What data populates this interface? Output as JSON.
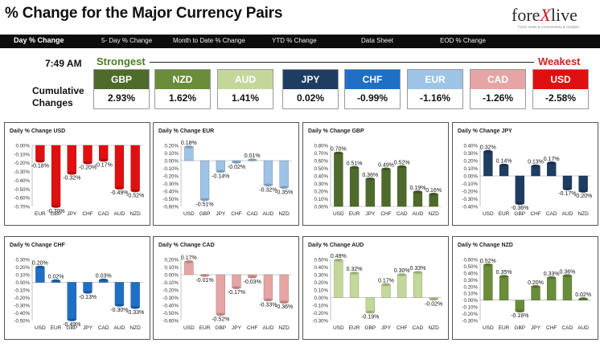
{
  "header": {
    "title": "% Change for the Major Currency Pairs",
    "logo_text_1": "fore",
    "logo_text_2": "X",
    "logo_text_3": "live",
    "logo_tagline": "Forex news & Commentary & Analysis"
  },
  "nav": [
    {
      "label": "Day % Change",
      "active": true
    },
    {
      "label": "5- Day % Change",
      "active": false
    },
    {
      "label": "Month to Date % Change",
      "active": false
    },
    {
      "label": "YTD % Change",
      "active": false
    },
    {
      "label": "Data Sheet",
      "active": false
    },
    {
      "label": "EOD % Change",
      "active": false
    }
  ],
  "time": "7:49 AM",
  "strongest_label": "Strongest",
  "weakest_label": "Weakest",
  "cumulative_label_1": "Cumulative",
  "cumulative_label_2": "Changes",
  "rank_cards": [
    {
      "currency": "GBP",
      "value": "2.93%",
      "color": "#4f6b2c"
    },
    {
      "currency": "NZD",
      "value": "1.62%",
      "color": "#6b8d3a"
    },
    {
      "currency": "AUD",
      "value": "1.41%",
      "color": "#c4d79b"
    },
    {
      "currency": "JPY",
      "value": "0.02%",
      "color": "#1f3d63"
    },
    {
      "currency": "CHF",
      "value": "-0.99%",
      "color": "#1f6fc5"
    },
    {
      "currency": "EUR",
      "value": "-1.16%",
      "color": "#9dc3e6"
    },
    {
      "currency": "CAD",
      "value": "-1.26%",
      "color": "#e6a5a5"
    },
    {
      "currency": "USD",
      "value": "-2.58%",
      "color": "#e01010"
    }
  ],
  "chart_data": [
    {
      "type": "bar",
      "title": "Daily % Change USD",
      "color": "#e01010",
      "categories": [
        "EUR",
        "GBP",
        "JPY",
        "CHF",
        "CAD",
        "AUD",
        "NZD"
      ],
      "values": [
        -0.18,
        -0.7,
        -0.32,
        -0.2,
        -0.17,
        -0.49,
        -0.52
      ],
      "data_labels": [
        "-0.18%",
        "-0.70%",
        "-0.32%",
        "-0.20%",
        "-0.17%",
        "-0.49%",
        "-0.52%"
      ],
      "ylim": [
        -0.7,
        0.0
      ],
      "yticks": [
        "0.00%",
        "-0.10%",
        "-0.20%",
        "-0.30%",
        "-0.40%",
        "-0.50%",
        "-0.60%",
        "-0.70%"
      ]
    },
    {
      "type": "bar",
      "title": "Daily % Change EUR",
      "color": "#9dc3e6",
      "categories": [
        "USD",
        "GBP",
        "JPY",
        "CHF",
        "CAD",
        "AUD",
        "NZD"
      ],
      "values": [
        0.18,
        -0.51,
        -0.14,
        -0.02,
        0.01,
        -0.32,
        -0.35
      ],
      "data_labels": [
        "0.18%",
        "-0.51%",
        "-0.14%",
        "-0.02%",
        "0.01%",
        "-0.32%",
        "-0.35%"
      ],
      "ylim": [
        -0.6,
        0.2
      ],
      "yticks": [
        "0.20%",
        "0.10%",
        "0.00%",
        "-0.10%",
        "-0.20%",
        "-0.30%",
        "-0.40%",
        "-0.50%",
        "-0.60%"
      ]
    },
    {
      "type": "bar",
      "title": "Daily % Change GBP",
      "color": "#4f6b2c",
      "categories": [
        "USD",
        "EUR",
        "JPY",
        "CHF",
        "CAD",
        "AUD",
        "NZD"
      ],
      "values": [
        0.7,
        0.51,
        0.36,
        0.49,
        0.52,
        0.19,
        0.16
      ],
      "data_labels": [
        "0.70%",
        "0.51%",
        "0.36%",
        "0.49%",
        "0.52%",
        "0.19%",
        "0.16%"
      ],
      "ylim": [
        0.0,
        0.8
      ],
      "yticks": [
        "0.80%",
        "0.70%",
        "0.60%",
        "0.50%",
        "0.40%",
        "0.30%",
        "0.20%",
        "0.10%",
        "0.00%"
      ]
    },
    {
      "type": "bar",
      "title": "Daily % Change JPY",
      "color": "#1f3d63",
      "categories": [
        "USD",
        "EUR",
        "GBP",
        "CHF",
        "CAD",
        "AUD",
        "NZD"
      ],
      "values": [
        0.32,
        0.14,
        -0.36,
        0.13,
        0.17,
        -0.17,
        -0.2
      ],
      "data_labels": [
        "0.32%",
        "0.14%",
        "-0.36%",
        "0.13%",
        "0.17%",
        "-0.17%",
        "-0.20%"
      ],
      "ylim": [
        -0.4,
        0.4
      ],
      "yticks": [
        "0.40%",
        "0.30%",
        "0.20%",
        "0.10%",
        "0.00%",
        "-0.10%",
        "-0.20%",
        "-0.30%",
        "-0.40%"
      ]
    },
    {
      "type": "bar",
      "title": "Daily % Change CHF",
      "color": "#1f6fc5",
      "categories": [
        "USD",
        "EUR",
        "GBP",
        "JPY",
        "CAD",
        "AUD",
        "NZD"
      ],
      "values": [
        0.2,
        0.02,
        -0.49,
        -0.13,
        0.03,
        -0.3,
        -0.33
      ],
      "data_labels": [
        "0.20%",
        "0.02%",
        "-0.49%",
        "-0.13%",
        "0.03%",
        "-0.30%",
        "-0.33%"
      ],
      "ylim": [
        -0.5,
        0.3
      ],
      "yticks": [
        "0.30%",
        "0.20%",
        "0.10%",
        "0.00%",
        "-0.10%",
        "-0.20%",
        "-0.30%",
        "-0.40%",
        "-0.50%"
      ]
    },
    {
      "type": "bar",
      "title": "Daily % Change CAD",
      "color": "#e6a5a5",
      "categories": [
        "USD",
        "EUR",
        "GBP",
        "JPY",
        "CHF",
        "AUD",
        "NZD"
      ],
      "values": [
        0.17,
        -0.01,
        -0.52,
        -0.17,
        -0.03,
        -0.33,
        -0.36
      ],
      "data_labels": [
        "0.17%",
        "-0.01%",
        "-0.52%",
        "-0.17%",
        "-0.03%",
        "-0.33%",
        "-0.36%"
      ],
      "ylim": [
        -0.6,
        0.2
      ],
      "yticks": [
        "0.20%",
        "0.10%",
        "0.00%",
        "-0.10%",
        "-0.20%",
        "-0.30%",
        "-0.40%",
        "-0.50%",
        "-0.60%"
      ]
    },
    {
      "type": "bar",
      "title": "Daily % Change AUD",
      "color": "#c4d79b",
      "categories": [
        "USD",
        "EUR",
        "GBP",
        "JPY",
        "CHF",
        "CAD",
        "NZD"
      ],
      "values": [
        0.49,
        0.32,
        -0.19,
        0.17,
        0.3,
        0.33,
        -0.02
      ],
      "data_labels": [
        "0.49%",
        "0.32%",
        "-0.19%",
        "0.17%",
        "0.30%",
        "0.33%",
        "-0.02%"
      ],
      "ylim": [
        -0.3,
        0.5
      ],
      "yticks": [
        "0.50%",
        "0.40%",
        "0.30%",
        "0.20%",
        "0.10%",
        "0.00%",
        "-0.10%",
        "-0.20%",
        "-0.30%"
      ]
    },
    {
      "type": "bar",
      "title": "Daily % Change NZD",
      "color": "#6b8d3a",
      "categories": [
        "USD",
        "EUR",
        "GBP",
        "JPY",
        "CHF",
        "CAD",
        "AUD"
      ],
      "values": [
        0.52,
        0.35,
        -0.16,
        0.2,
        0.33,
        0.36,
        0.02
      ],
      "data_labels": [
        "0.52%",
        "0.35%",
        "-0.16%",
        "0.20%",
        "0.33%",
        "0.36%",
        "0.02%"
      ],
      "ylim": [
        -0.3,
        0.6
      ],
      "yticks": [
        "0.60%",
        "0.50%",
        "0.40%",
        "0.30%",
        "0.20%",
        "0.10%",
        "0.00%",
        "-0.10%",
        "-0.20%",
        "-0.30%"
      ]
    }
  ]
}
